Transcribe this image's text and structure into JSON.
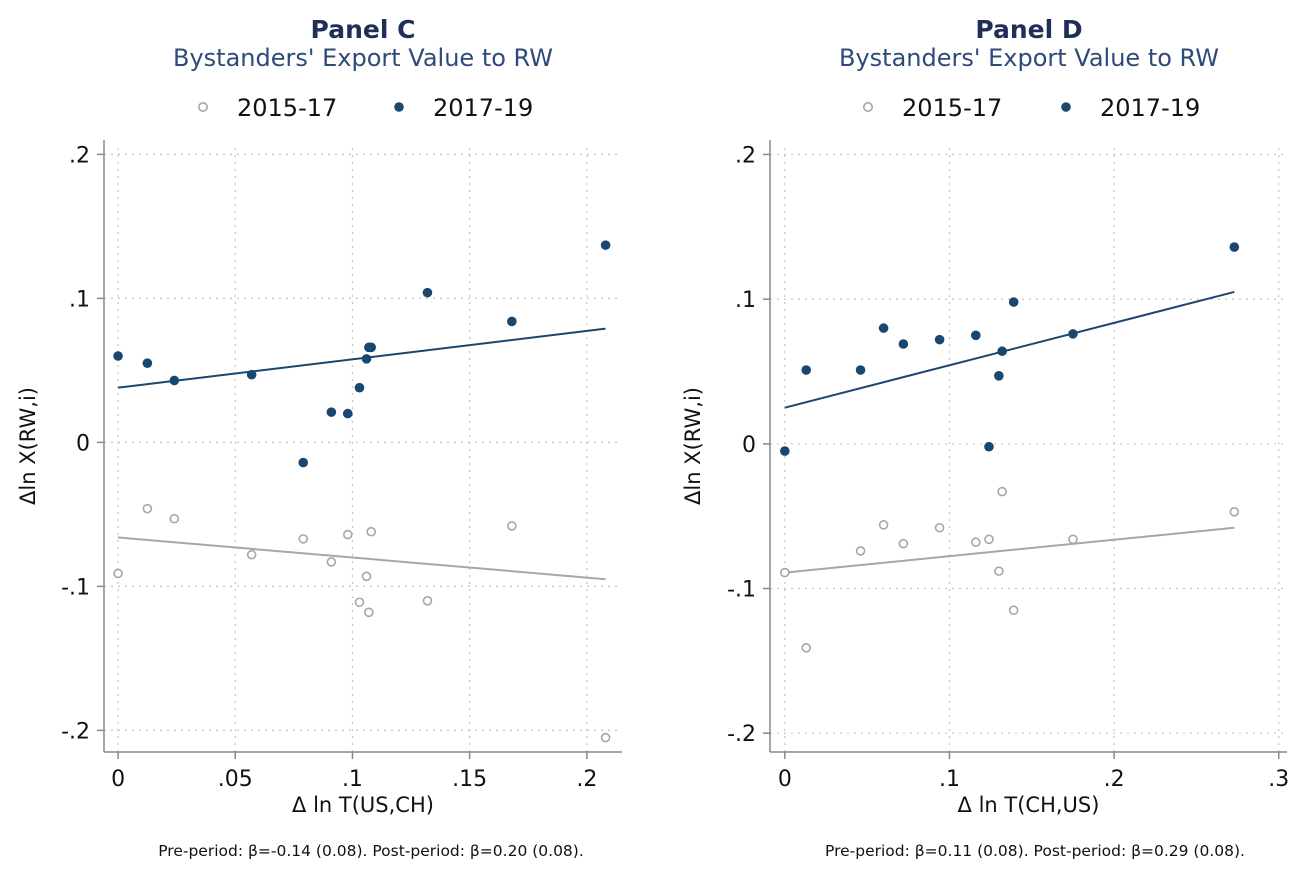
{
  "colors": {
    "pre": "#a6a6a6",
    "post": "#1a476f",
    "title": "#1f2f57",
    "subtitle": "#2f4a7a",
    "grid": "#c4c4c4",
    "axis": "#888888"
  },
  "chart_data": [
    {
      "type": "scatter",
      "title": "Panel C",
      "subtitle": "Bystanders' Export Value to RW",
      "xlabel": "Δ ln T(US,CH)",
      "ylabel": "Δln X(RW,i)",
      "xlim": [
        -0.006,
        0.215
      ],
      "ylim": [
        -0.215,
        0.21
      ],
      "xticks": [
        0,
        0.05,
        0.1,
        0.15,
        0.2
      ],
      "xtick_labels": [
        "0",
        ".05",
        ".1",
        ".15",
        ".2"
      ],
      "yticks": [
        -0.2,
        -0.1,
        0,
        0.1,
        0.2
      ],
      "ytick_labels": [
        "-.2",
        "-.1",
        "0",
        ".1",
        ".2"
      ],
      "grid": true,
      "legend_position": "top",
      "note": "Pre-period: β=-0.14 (0.08). Post-period: β=0.20 (0.08).",
      "series": [
        {
          "name": "2015-17",
          "marker": "hollow-circle",
          "points": [
            [
              0.0,
              -0.091
            ],
            [
              0.0125,
              -0.046
            ],
            [
              0.024,
              -0.053
            ],
            [
              0.057,
              -0.078
            ],
            [
              0.079,
              -0.067
            ],
            [
              0.091,
              -0.083
            ],
            [
              0.098,
              -0.064
            ],
            [
              0.103,
              -0.111
            ],
            [
              0.106,
              -0.093
            ],
            [
              0.107,
              -0.118
            ],
            [
              0.108,
              -0.062
            ],
            [
              0.132,
              -0.11
            ],
            [
              0.168,
              -0.058
            ],
            [
              0.208,
              -0.205
            ]
          ],
          "fit": {
            "x": [
              0.0,
              0.208
            ],
            "y": [
              -0.066,
              -0.095
            ]
          }
        },
        {
          "name": "2017-19",
          "marker": "filled-circle",
          "points": [
            [
              0.0,
              0.06
            ],
            [
              0.0125,
              0.055
            ],
            [
              0.024,
              0.043
            ],
            [
              0.057,
              0.047
            ],
            [
              0.079,
              -0.014
            ],
            [
              0.091,
              0.021
            ],
            [
              0.098,
              0.02
            ],
            [
              0.103,
              0.038
            ],
            [
              0.106,
              0.058
            ],
            [
              0.107,
              0.066
            ],
            [
              0.108,
              0.066
            ],
            [
              0.132,
              0.104
            ],
            [
              0.168,
              0.084
            ],
            [
              0.208,
              0.137
            ]
          ],
          "fit": {
            "x": [
              0.0,
              0.208
            ],
            "y": [
              0.038,
              0.079
            ]
          }
        }
      ]
    },
    {
      "type": "scatter",
      "title": "Panel D",
      "subtitle": "Bystanders' Export Value to RW",
      "xlabel": "Δ ln T(CH,US)",
      "ylabel": "Δln X(RW,i)",
      "xlim": [
        -0.009,
        0.305
      ],
      "ylim": [
        -0.213,
        0.21
      ],
      "xticks": [
        0,
        0.1,
        0.2,
        0.3
      ],
      "xtick_labels": [
        "0",
        ".1",
        ".2",
        ".3"
      ],
      "yticks": [
        -0.2,
        -0.1,
        0,
        0.1,
        0.2
      ],
      "ytick_labels": [
        "-.2",
        "-.1",
        "0",
        ".1",
        ".2"
      ],
      "grid": true,
      "legend_position": "top",
      "note": "Pre-period: β=0.11 (0.08). Post-period: β=0.29 (0.08).",
      "series": [
        {
          "name": "2015-17",
          "marker": "hollow-circle",
          "points": [
            [
              0.0,
              -0.089
            ],
            [
              0.013,
              -0.141
            ],
            [
              0.046,
              -0.074
            ],
            [
              0.06,
              -0.056
            ],
            [
              0.072,
              -0.069
            ],
            [
              0.094,
              -0.058
            ],
            [
              0.116,
              -0.068
            ],
            [
              0.124,
              -0.066
            ],
            [
              0.13,
              -0.088
            ],
            [
              0.132,
              -0.033
            ],
            [
              0.139,
              -0.115
            ],
            [
              0.175,
              -0.066
            ],
            [
              0.273,
              -0.047
            ]
          ],
          "fit": {
            "x": [
              0.0,
              0.273
            ],
            "y": [
              -0.089,
              -0.058
            ]
          }
        },
        {
          "name": "2017-19",
          "marker": "filled-circle",
          "points": [
            [
              0.0,
              -0.005
            ],
            [
              0.013,
              0.051
            ],
            [
              0.046,
              0.051
            ],
            [
              0.06,
              0.08
            ],
            [
              0.072,
              0.069
            ],
            [
              0.094,
              0.072
            ],
            [
              0.116,
              0.075
            ],
            [
              0.124,
              -0.002
            ],
            [
              0.13,
              0.047
            ],
            [
              0.132,
              0.064
            ],
            [
              0.139,
              0.098
            ],
            [
              0.175,
              0.076
            ],
            [
              0.273,
              0.136
            ]
          ],
          "fit": {
            "x": [
              0.0,
              0.273
            ],
            "y": [
              0.025,
              0.105
            ]
          }
        }
      ]
    }
  ]
}
